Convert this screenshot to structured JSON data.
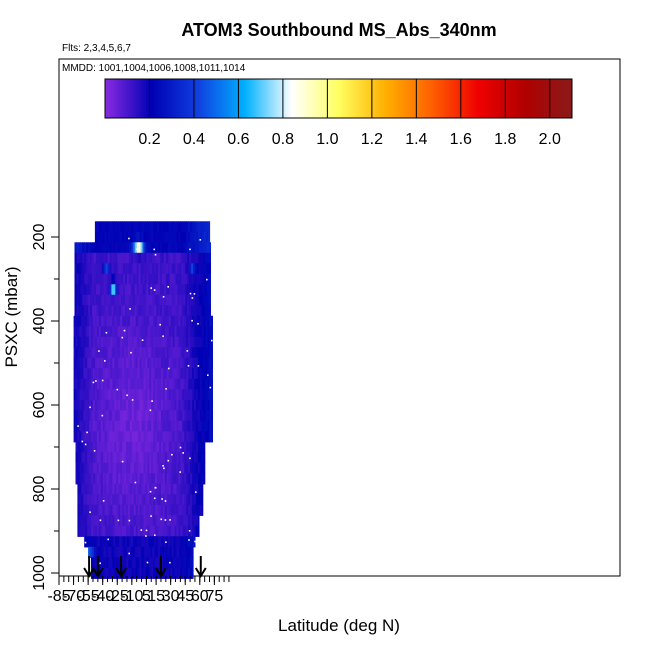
{
  "chart_data": {
    "type": "heatmap",
    "title": "ATOM3 Southbound MS_Abs_340nm",
    "subtitle_flights": "Flts: 2,3,4,5,6,7",
    "subtitle_dates": "MMDD: 1001,1004,1006,1008,1011,1014",
    "xlabel": "Latitude (deg N)",
    "ylabel": "PSXC (mbar)",
    "xlim": [
      -85,
      90
    ],
    "ylim": [
      1000,
      120
    ],
    "y_reversed": true,
    "x_ticks": [
      -85,
      -70,
      -55,
      -40,
      -25,
      -10,
      5,
      15,
      30,
      45,
      60,
      75
    ],
    "y_ticks": [
      200,
      400,
      600,
      800,
      1000
    ],
    "colorbar": {
      "ticks": [
        0.2,
        0.4,
        0.6,
        0.8,
        1.0,
        1.2,
        1.4,
        1.6,
        1.8,
        2.0
      ],
      "tick_labels": [
        "0.2",
        "0.4",
        "0.6",
        "0.8",
        "1.0",
        "1.2",
        "1.4",
        "1.6",
        "1.8",
        "2.0"
      ],
      "range": [
        0.0,
        2.1
      ],
      "colors": [
        "#8a2be2",
        "#0000b4",
        "#1040e0",
        "#00b0ff",
        "#ffffff",
        "#ffff60",
        "#ffb000",
        "#ff6000",
        "#ee0000",
        "#b00000",
        "#8b1a1a"
      ]
    },
    "flight_latitudes": [
      -54,
      -45,
      -21,
      20,
      61
    ],
    "value_range_shown": [
      0.05,
      0.9
    ],
    "notes": "Curtain of mean MS_Abs_340nm values; mostly 0.1-0.3, enhanced values up to ~0.9 near 220-260 mbar at about -5 to 0 N and near 320 mbar at about -29 N."
  }
}
